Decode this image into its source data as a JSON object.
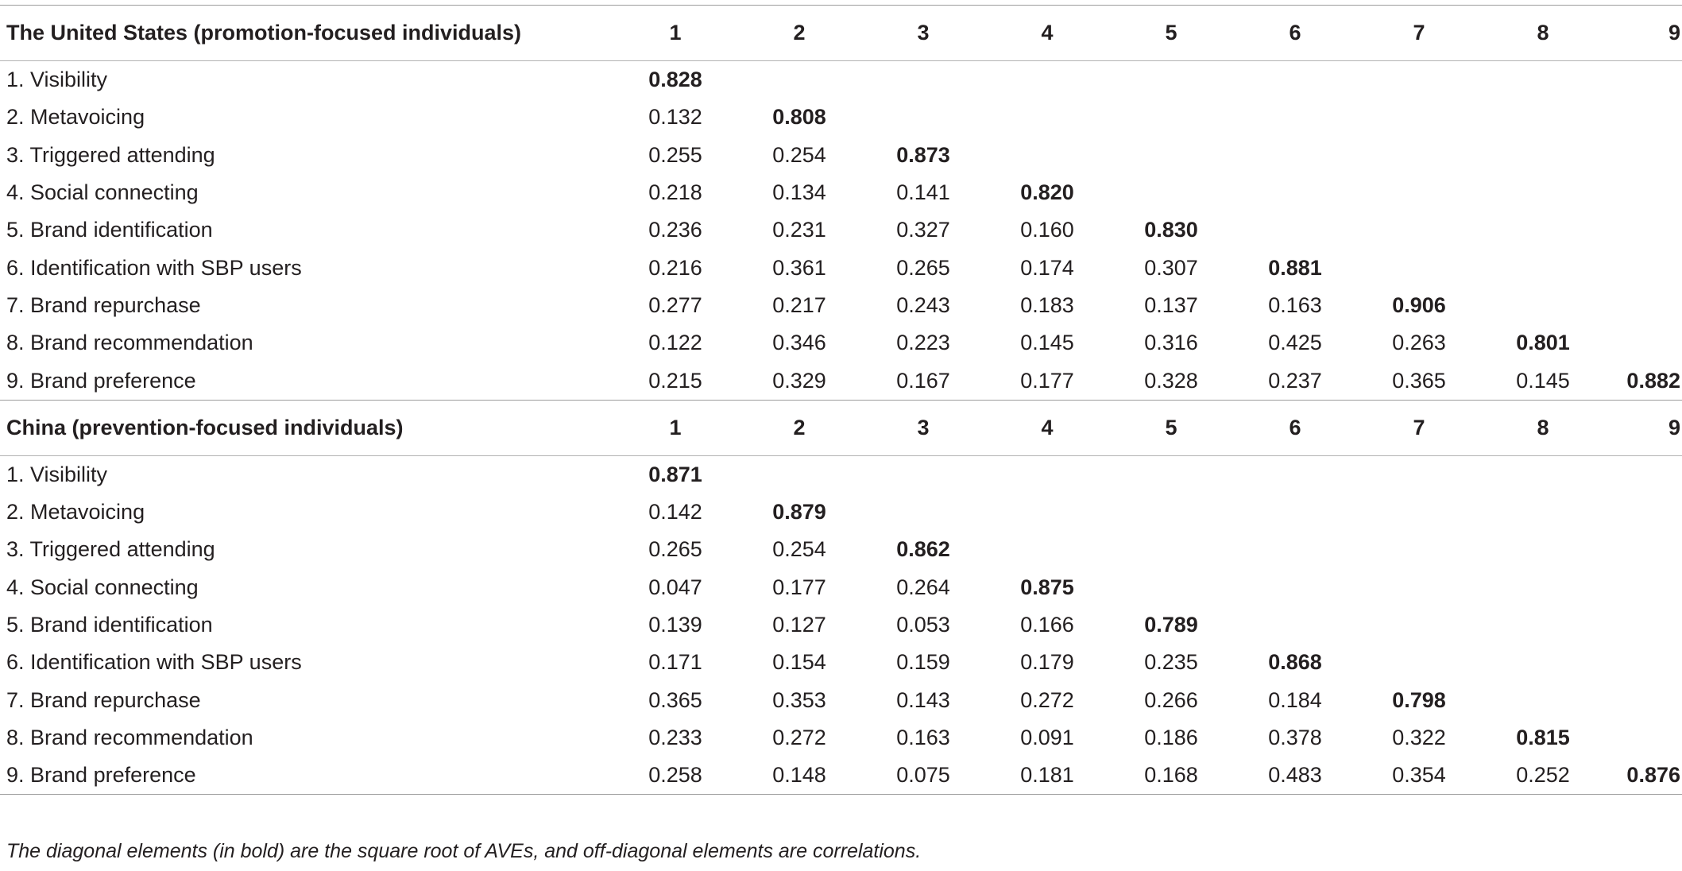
{
  "columns": [
    "1",
    "2",
    "3",
    "4",
    "5",
    "6",
    "7",
    "8",
    "9"
  ],
  "panels": [
    {
      "title": "The United States (promotion-focused individuals)",
      "rows": [
        {
          "label": "1. Visibility",
          "values": [
            "0.828"
          ]
        },
        {
          "label": "2. Metavoicing",
          "values": [
            "0.132",
            "0.808"
          ]
        },
        {
          "label": "3. Triggered attending",
          "values": [
            "0.255",
            "0.254",
            "0.873"
          ]
        },
        {
          "label": "4. Social connecting",
          "values": [
            "0.218",
            "0.134",
            "0.141",
            "0.820"
          ]
        },
        {
          "label": "5. Brand identification",
          "values": [
            "0.236",
            "0.231",
            "0.327",
            "0.160",
            "0.830"
          ]
        },
        {
          "label": "6. Identification with SBP users",
          "values": [
            "0.216",
            "0.361",
            "0.265",
            "0.174",
            "0.307",
            "0.881"
          ]
        },
        {
          "label": "7. Brand repurchase",
          "values": [
            "0.277",
            "0.217",
            "0.243",
            "0.183",
            "0.137",
            "0.163",
            "0.906"
          ]
        },
        {
          "label": "8. Brand recommendation",
          "values": [
            "0.122",
            "0.346",
            "0.223",
            "0.145",
            "0.316",
            "0.425",
            "0.263",
            "0.801"
          ]
        },
        {
          "label": "9. Brand preference",
          "values": [
            "0.215",
            "0.329",
            "0.167",
            "0.177",
            "0.328",
            "0.237",
            "0.365",
            "0.145",
            "0.882"
          ]
        }
      ]
    },
    {
      "title": "China (prevention-focused individuals)",
      "rows": [
        {
          "label": "1. Visibility",
          "values": [
            "0.871"
          ]
        },
        {
          "label": "2. Metavoicing",
          "values": [
            "0.142",
            "0.879"
          ]
        },
        {
          "label": "3. Triggered attending",
          "values": [
            "0.265",
            "0.254",
            "0.862"
          ]
        },
        {
          "label": "4. Social connecting",
          "values": [
            "0.047",
            "0.177",
            "0.264",
            "0.875"
          ]
        },
        {
          "label": "5. Brand identification",
          "values": [
            "0.139",
            "0.127",
            "0.053",
            "0.166",
            "0.789"
          ]
        },
        {
          "label": "6. Identification with SBP users",
          "values": [
            "0.171",
            "0.154",
            "0.159",
            "0.179",
            "0.235",
            "0.868"
          ]
        },
        {
          "label": "7. Brand repurchase",
          "values": [
            "0.365",
            "0.353",
            "0.143",
            "0.272",
            "0.266",
            "0.184",
            "0.798"
          ]
        },
        {
          "label": "8. Brand recommendation",
          "values": [
            "0.233",
            "0.272",
            "0.163",
            "0.091",
            "0.186",
            "0.378",
            "0.322",
            "0.815"
          ]
        },
        {
          "label": "9. Brand preference",
          "values": [
            "0.258",
            "0.148",
            "0.075",
            "0.181",
            "0.168",
            "0.483",
            "0.354",
            "0.252",
            "0.876"
          ]
        }
      ]
    }
  ],
  "footnote": "The diagonal elements (in bold) are the square root of AVEs, and off-diagonal elements are correlations."
}
